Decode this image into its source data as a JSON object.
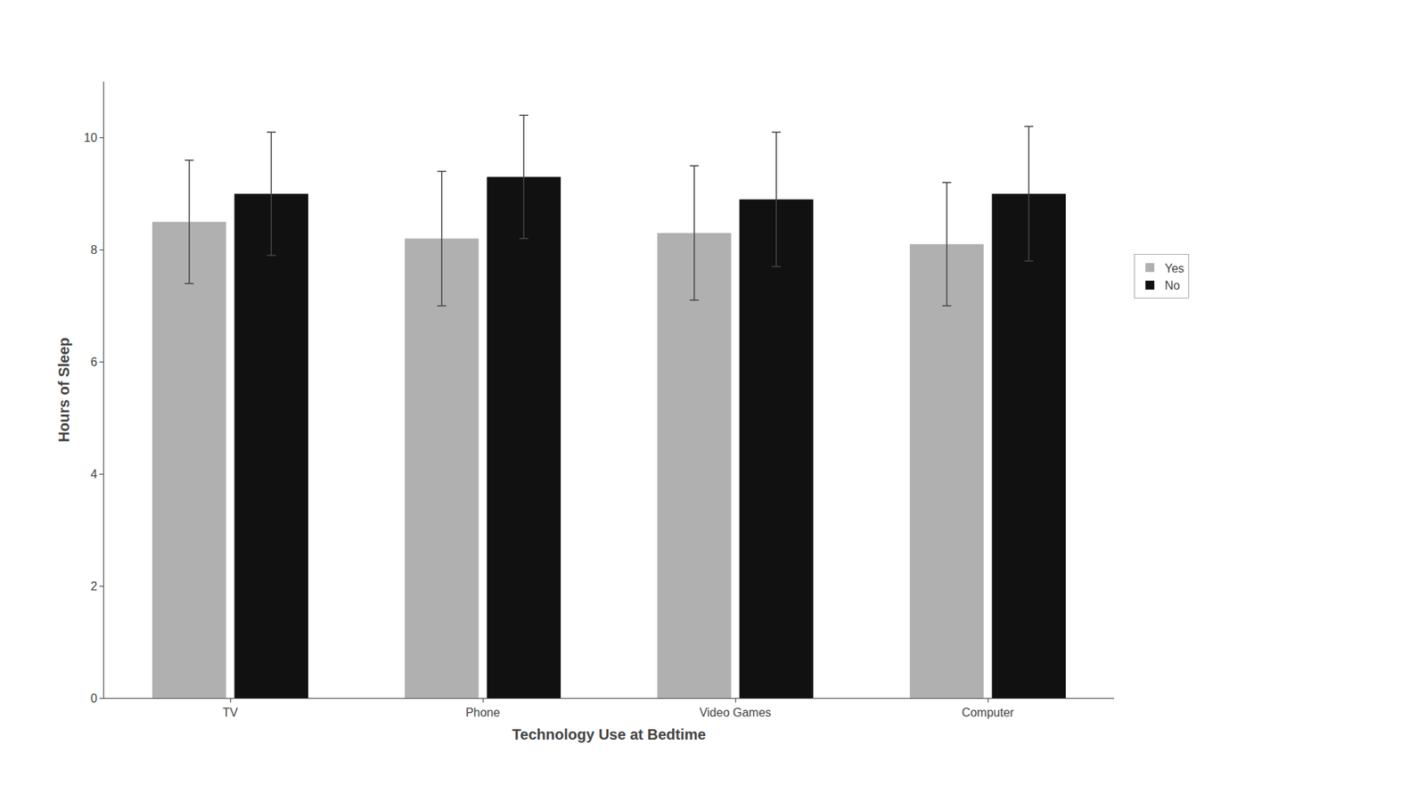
{
  "chart_data": {
    "type": "bar",
    "xlabel": "Technology Use at Bedtime",
    "ylabel": "Hours of Sleep",
    "categories": [
      "TV",
      "Phone",
      "Video Games",
      "Computer"
    ],
    "series": [
      {
        "name": "Yes",
        "color": "#b0b0b0",
        "values": [
          8.5,
          8.2,
          8.3,
          8.1
        ],
        "errors": [
          1.1,
          1.2,
          1.2,
          1.1
        ]
      },
      {
        "name": "No",
        "color": "#111111",
        "values": [
          9.0,
          9.3,
          8.9,
          9.0
        ],
        "errors": [
          1.1,
          1.1,
          1.2,
          1.2
        ]
      }
    ],
    "ylim": [
      0,
      11
    ],
    "yticks": [
      0,
      2,
      4,
      6,
      8,
      10
    ],
    "grid": false,
    "legend": "right"
  }
}
